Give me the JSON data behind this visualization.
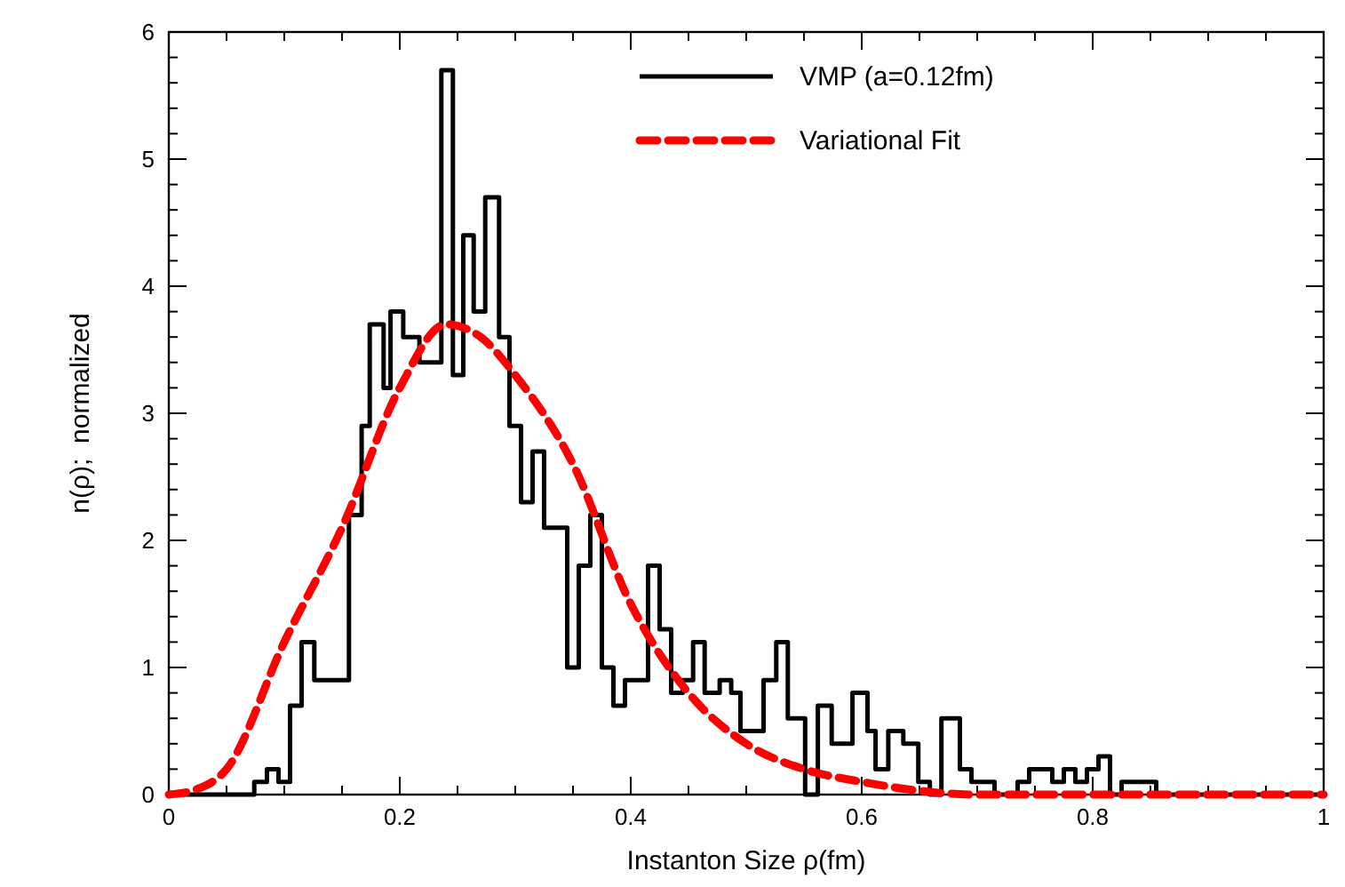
{
  "chart_data": {
    "type": "line",
    "xlabel": "Instanton Size ρ(fm)",
    "ylabel": "n(ρ);  normalized",
    "xlim": [
      0,
      1
    ],
    "ylim": [
      0,
      6
    ],
    "xticks": [
      0,
      {
        "value": 0.05,
        "label": null
      },
      {
        "value": 0.1,
        "label": null
      },
      {
        "value": 0.15,
        "label": null
      },
      0.2,
      {
        "value": 0.25,
        "label": null
      },
      {
        "value": 0.3,
        "label": null
      },
      {
        "value": 0.35,
        "label": null
      },
      0.4,
      {
        "value": 0.45,
        "label": null
      },
      {
        "value": 0.5,
        "label": null
      },
      {
        "value": 0.55,
        "label": null
      },
      0.6,
      {
        "value": 0.65,
        "label": null
      },
      {
        "value": 0.7,
        "label": null
      },
      {
        "value": 0.75,
        "label": null
      },
      0.8,
      {
        "value": 0.85,
        "label": null
      },
      {
        "value": 0.9,
        "label": null
      },
      {
        "value": 0.95,
        "label": null
      },
      1
    ],
    "yticks": [
      0,
      {
        "value": 0.2,
        "label": null
      },
      {
        "value": 0.4,
        "label": null
      },
      {
        "value": 0.6,
        "label": null
      },
      {
        "value": 0.8,
        "label": null
      },
      1,
      {
        "value": 1.2,
        "label": null
      },
      {
        "value": 1.4,
        "label": null
      },
      {
        "value": 1.6,
        "label": null
      },
      {
        "value": 1.8,
        "label": null
      },
      2,
      {
        "value": 2.2,
        "label": null
      },
      {
        "value": 2.4,
        "label": null
      },
      {
        "value": 2.6,
        "label": null
      },
      {
        "value": 2.8,
        "label": null
      },
      3,
      {
        "value": 3.2,
        "label": null
      },
      {
        "value": 3.4,
        "label": null
      },
      {
        "value": 3.6,
        "label": null
      },
      {
        "value": 3.8,
        "label": null
      },
      4,
      {
        "value": 4.2,
        "label": null
      },
      {
        "value": 4.4,
        "label": null
      },
      {
        "value": 4.6,
        "label": null
      },
      {
        "value": 4.8,
        "label": null
      },
      5,
      {
        "value": 5.2,
        "label": null
      },
      {
        "value": 5.4,
        "label": null
      },
      {
        "value": 5.6,
        "label": null
      },
      {
        "value": 5.8,
        "label": null
      },
      6
    ],
    "grid": false,
    "legend": "top right",
    "series": [
      {
        "name": "VMP (a=0.12fm)",
        "type": "step",
        "color": "#000000",
        "line_style": "solid",
        "x": [
          0,
          0.074,
          0.085,
          0.095,
          0.105,
          0.115,
          0.126,
          0.156,
          0.167,
          0.174,
          0.186,
          0.192,
          0.203,
          0.217,
          0.236,
          0.246,
          0.255,
          0.264,
          0.274,
          0.286,
          0.295,
          0.305,
          0.315,
          0.325,
          0.345,
          0.355,
          0.365,
          0.375,
          0.385,
          0.395,
          0.415,
          0.425,
          0.435,
          0.445,
          0.454,
          0.464,
          0.477,
          0.487,
          0.495,
          0.515,
          0.526,
          0.536,
          0.551,
          0.562,
          0.574,
          0.592,
          0.605,
          0.612,
          0.623,
          0.636,
          0.649,
          0.659,
          0.669,
          0.685,
          0.695,
          0.715,
          0.735,
          0.745,
          0.765,
          0.775,
          0.785,
          0.795,
          0.805,
          0.815,
          0.825,
          0.855,
          1
        ],
        "values": [
          0,
          0.1,
          0.2,
          0.1,
          0.7,
          1.2,
          0.9,
          2.2,
          2.9,
          3.7,
          3.2,
          3.8,
          3.6,
          3.4,
          5.7,
          3.3,
          4.4,
          3.8,
          4.7,
          3.6,
          2.9,
          2.3,
          2.7,
          2.1,
          1,
          1.8,
          2.2,
          1,
          0.7,
          0.9,
          1.8,
          1.3,
          0.8,
          0.9,
          1.2,
          0.8,
          0.9,
          0.8,
          0.5,
          0.9,
          1.2,
          0.6,
          0,
          0.7,
          0.4,
          0.8,
          0.5,
          0.2,
          0.5,
          0.4,
          0.1,
          0,
          0.6,
          0.2,
          0.1,
          0,
          0.1,
          0.2,
          0.1,
          0.2,
          0.1,
          0.2,
          0.3,
          0,
          0.1,
          0,
          0
        ]
      },
      {
        "name": "Variational Fit",
        "type": "line",
        "color": "#ff0000",
        "line_style": "dashed",
        "x": [
          0,
          0.02,
          0.05,
          0.1,
          0.15,
          0.2,
          0.24,
          0.27,
          0.3,
          0.35,
          0.4,
          0.45,
          0.5,
          0.55,
          0.6,
          0.7,
          1
        ],
        "values": [
          0,
          0.03,
          0.2,
          1.2,
          2.1,
          3.2,
          3.7,
          3.6,
          3.3,
          2.6,
          1.5,
          0.8,
          0.4,
          0.2,
          0.1,
          0,
          0
        ]
      }
    ]
  }
}
